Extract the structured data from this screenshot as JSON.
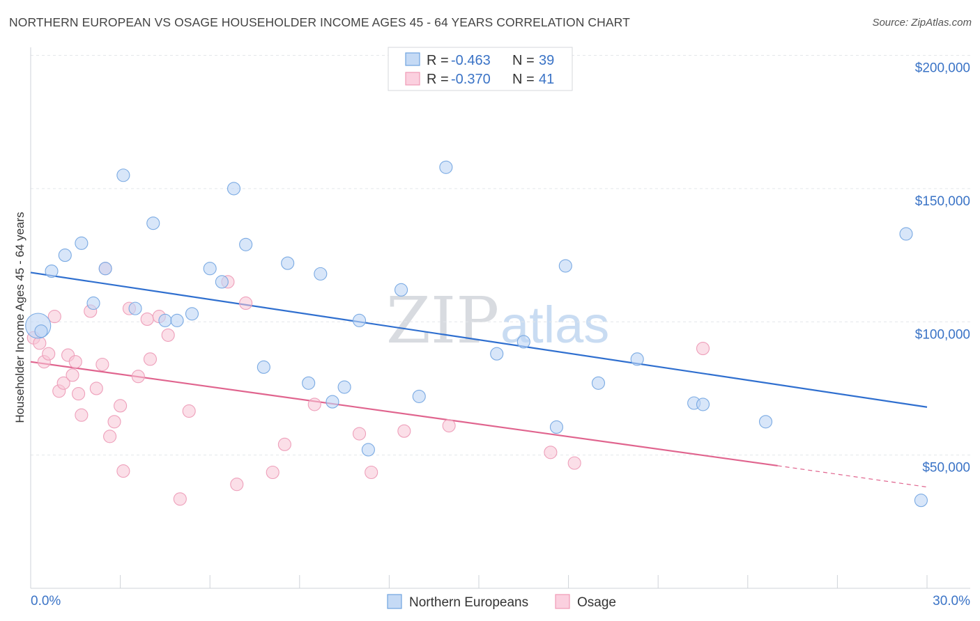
{
  "header": {
    "title": "NORTHERN EUROPEAN VS OSAGE HOUSEHOLDER INCOME AGES 45 - 64 YEARS CORRELATION CHART",
    "source": "Source: ZipAtlas.com"
  },
  "watermark": {
    "zip": "ZIP",
    "atlas": "atlas"
  },
  "legend": {
    "rows": [
      {
        "r_label": "R =",
        "r_value": "-0.463",
        "n_label": "N =",
        "n_value": "39"
      },
      {
        "r_label": "R =",
        "r_value": "-0.370",
        "n_label": "N =",
        "n_value": "41"
      }
    ]
  },
  "chart_data": {
    "type": "scatter",
    "title": "NORTHERN EUROPEAN VS OSAGE HOUSEHOLDER INCOME AGES 45 - 64 YEARS CORRELATION CHART",
    "xlabel": "",
    "ylabel": "Householder Income Ages 45 - 64 years",
    "xlim": [
      0,
      30
    ],
    "ylim": [
      0,
      210000
    ],
    "x_tick_labels": [
      "0.0%",
      "30.0%"
    ],
    "y_ticks": [
      50000,
      100000,
      150000,
      200000
    ],
    "y_tick_labels": [
      "$50,000",
      "$100,000",
      "$150,000",
      "$200,000"
    ],
    "grid": true,
    "legend_position": "top-center",
    "colors": {
      "Northern Europeans": "#6fa3e0",
      "Osage": "#f09ab6",
      "blue_line": "#2f6fcf",
      "pink_line": "#e0648e"
    },
    "series": [
      {
        "name": "Northern Europeans",
        "r": -0.463,
        "n": 39,
        "trend": {
          "x": [
            0,
            30
          ],
          "y": [
            118500,
            68000
          ]
        },
        "points": [
          [
            0.25,
            98500
          ],
          [
            0.7,
            119000
          ],
          [
            1.15,
            125000
          ],
          [
            1.7,
            129500
          ],
          [
            2.1,
            107000
          ],
          [
            2.5,
            120000
          ],
          [
            3.1,
            155000
          ],
          [
            3.5,
            105000
          ],
          [
            4.1,
            137000
          ],
          [
            4.5,
            100500
          ],
          [
            4.9,
            100500
          ],
          [
            5.4,
            103000
          ],
          [
            6.0,
            120000
          ],
          [
            6.4,
            115000
          ],
          [
            6.8,
            150000
          ],
          [
            7.2,
            129000
          ],
          [
            7.8,
            83000
          ],
          [
            8.6,
            122000
          ],
          [
            9.3,
            77000
          ],
          [
            9.7,
            118000
          ],
          [
            10.1,
            70000
          ],
          [
            10.5,
            75500
          ],
          [
            11.0,
            100500
          ],
          [
            11.3,
            52000
          ],
          [
            12.4,
            112000
          ],
          [
            13.0,
            72000
          ],
          [
            13.9,
            158000
          ],
          [
            15.6,
            88000
          ],
          [
            16.5,
            92500
          ],
          [
            17.6,
            60500
          ],
          [
            17.9,
            121000
          ],
          [
            19.0,
            77000
          ],
          [
            20.3,
            86000
          ],
          [
            22.2,
            69500
          ],
          [
            22.5,
            69000
          ],
          [
            24.6,
            62500
          ],
          [
            29.3,
            133000
          ],
          [
            29.8,
            33000
          ],
          [
            0.35,
            96500
          ]
        ]
      },
      {
        "name": "Osage",
        "r": -0.37,
        "n": 41,
        "trend": {
          "x": [
            0,
            25
          ],
          "y": [
            85000,
            46000
          ]
        },
        "trend_dashed": {
          "x": [
            25,
            30
          ],
          "y": [
            46000,
            38000
          ]
        },
        "points": [
          [
            0.1,
            94000
          ],
          [
            0.3,
            92000
          ],
          [
            0.45,
            85000
          ],
          [
            0.6,
            88000
          ],
          [
            0.8,
            102000
          ],
          [
            0.95,
            74000
          ],
          [
            1.1,
            77000
          ],
          [
            1.25,
            87500
          ],
          [
            1.4,
            80000
          ],
          [
            1.5,
            85000
          ],
          [
            1.6,
            73000
          ],
          [
            1.7,
            65000
          ],
          [
            2.0,
            104000
          ],
          [
            2.2,
            75000
          ],
          [
            2.4,
            84000
          ],
          [
            2.5,
            120000
          ],
          [
            2.65,
            57000
          ],
          [
            2.8,
            62500
          ],
          [
            3.0,
            68500
          ],
          [
            3.1,
            44000
          ],
          [
            3.3,
            105000
          ],
          [
            3.6,
            79500
          ],
          [
            3.9,
            101000
          ],
          [
            4.0,
            86000
          ],
          [
            4.3,
            102000
          ],
          [
            4.6,
            95000
          ],
          [
            5.0,
            33500
          ],
          [
            5.3,
            66500
          ],
          [
            6.6,
            115000
          ],
          [
            6.9,
            39000
          ],
          [
            7.2,
            107000
          ],
          [
            8.1,
            43500
          ],
          [
            8.5,
            54000
          ],
          [
            9.5,
            69000
          ],
          [
            11.0,
            58000
          ],
          [
            11.4,
            43500
          ],
          [
            12.5,
            59000
          ],
          [
            14.0,
            61000
          ],
          [
            17.4,
            51000
          ],
          [
            18.2,
            47000
          ],
          [
            22.5,
            90000
          ]
        ]
      }
    ]
  },
  "bottom_legend": {
    "items": [
      {
        "label": "Northern Europeans"
      },
      {
        "label": "Osage"
      }
    ]
  }
}
